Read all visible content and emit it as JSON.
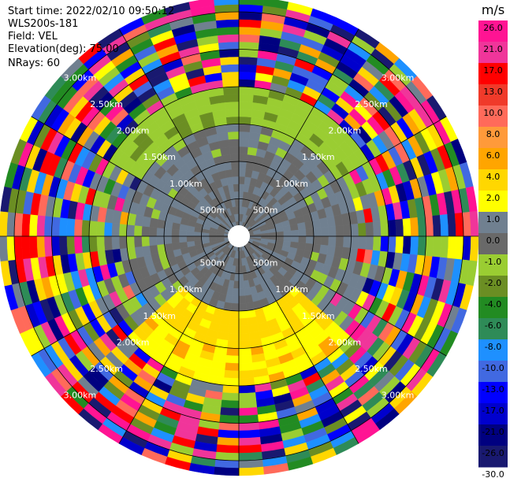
{
  "header": {
    "start_time": "Start time: 2022/02/10 09:50:12",
    "instrument": "WLS200s-181",
    "field": "Field: VEL",
    "elevation": "Elevation(deg): 75.00",
    "nrays": "NRays: 60"
  },
  "chart_data": {
    "type": "heatmap",
    "projection": "polar-ppi",
    "field": "VEL",
    "units": "m/s",
    "n_rays": 60,
    "elevation_deg": 75.0,
    "range_rings_labels": [
      "500m",
      "1.00km",
      "1.50km",
      "2.00km",
      "2.50km",
      "3.00km"
    ],
    "range_rings_m": [
      500,
      1000,
      1500,
      2000,
      2500,
      3000
    ],
    "max_range_m": 3200,
    "colorbar": {
      "unit_label": "m/s",
      "ticks": [
        "26.0",
        "21.0",
        "17.0",
        "13.0",
        "10.0",
        "8.0",
        "6.0",
        "4.0",
        "2.0",
        "1.0",
        "0.0",
        "-1.0",
        "-2.0",
        "-4.0",
        "-6.0",
        "-8.0",
        "-10.0",
        "-13.0",
        "-17.0",
        "-21.0",
        "-26.0",
        "-30.0"
      ],
      "colors": [
        "#ff1493",
        "#f0359a",
        "#ff0000",
        "#f03a2a",
        "#ff6a5a",
        "#ff9a3a",
        "#ffa500",
        "#ffd700",
        "#ffff00",
        "#708090",
        "#696969",
        "#9acd32",
        "#6b8e23",
        "#228b22",
        "#2e8b57",
        "#1e90ff",
        "#4169e1",
        "#0000ff",
        "#0000cd",
        "#000080",
        "#191970"
      ]
    }
  }
}
